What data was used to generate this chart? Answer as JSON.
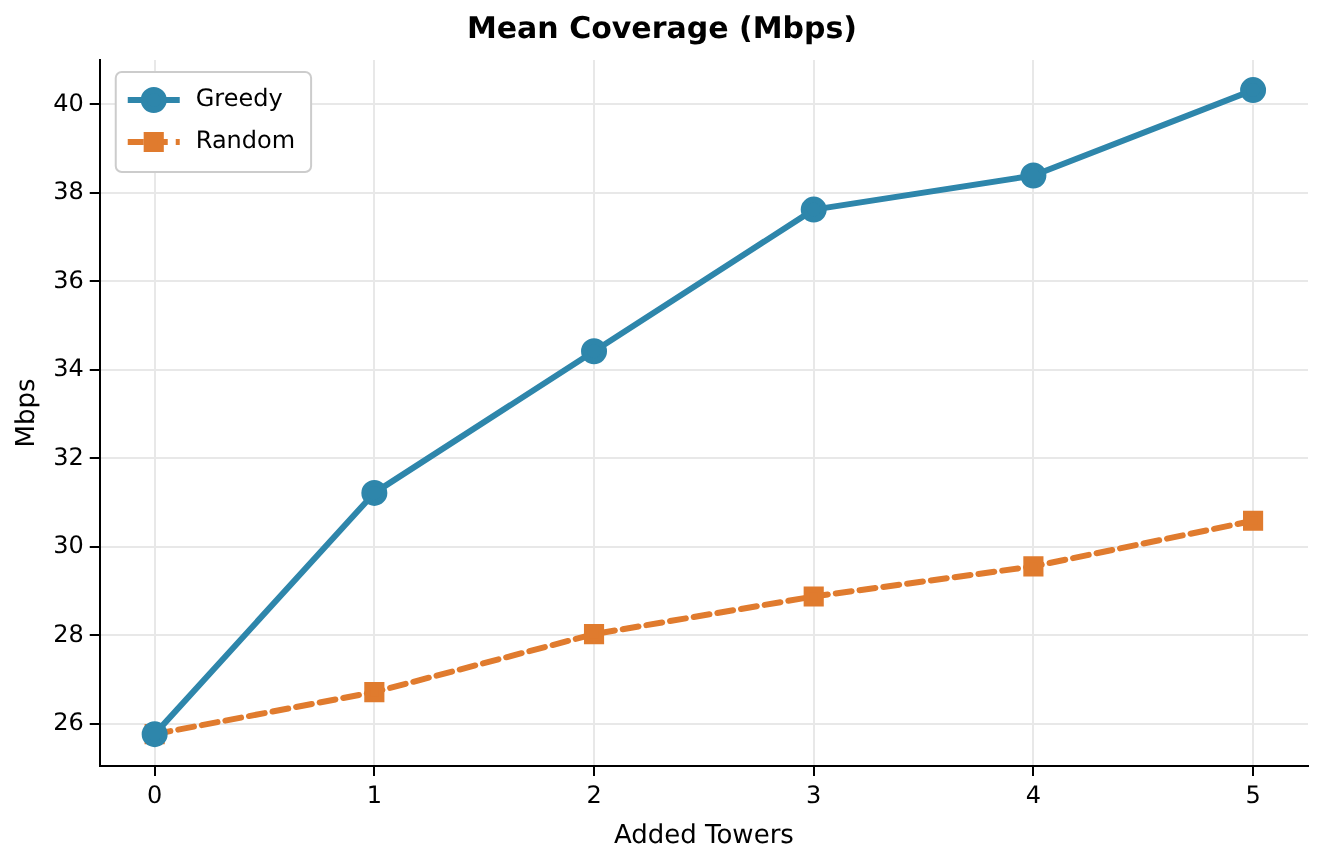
{
  "chart_data": {
    "type": "line",
    "title": "Mean Coverage (Mbps)",
    "xlabel": "Added Towers",
    "ylabel": "Mbps",
    "x": [
      0,
      1,
      2,
      3,
      4,
      5
    ],
    "series": [
      {
        "name": "Greedy",
        "color": "#2e86ab",
        "marker": "circle",
        "line_style": "solid",
        "values": [
          25.77,
          31.22,
          34.42,
          37.62,
          38.39,
          40.32
        ]
      },
      {
        "name": "Random",
        "color": "#e07b2e",
        "marker": "square",
        "line_style": "dashed",
        "values": [
          25.77,
          26.72,
          28.03,
          28.88,
          29.56,
          30.59
        ]
      }
    ],
    "xlim": [
      -0.25,
      5.25
    ],
    "xticks": [
      0,
      1,
      2,
      3,
      4,
      5
    ],
    "ylim": [
      25.05,
      41
    ],
    "yticks": [
      26,
      28,
      30,
      32,
      34,
      36,
      38,
      40
    ],
    "grid": true,
    "legend": "top left"
  }
}
